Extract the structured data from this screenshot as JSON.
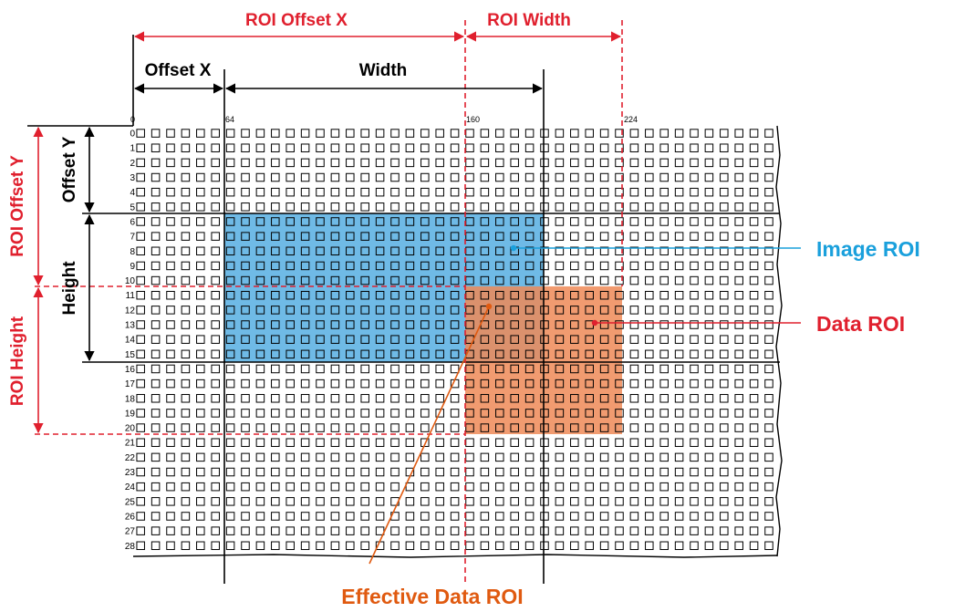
{
  "colors": {
    "red": "#e0202e",
    "blue": "#1aa0dc",
    "image_roi_fill": "#5fb3e3",
    "data_roi_fill": "#ef8a57",
    "effective_line": "#e05a10",
    "grid": "#000000"
  },
  "labels": {
    "roi_offset_x": "ROI Offset X",
    "roi_width": "ROI Width",
    "offset_x": "Offset X",
    "width": "Width",
    "roi_offset_y": "ROI Offset Y",
    "roi_height": "ROI Height",
    "offset_y": "Offset Y",
    "height": "Height",
    "image_roi": "Image ROI",
    "data_roi": "Data ROI",
    "effective_data_roi": "Effective Data ROI"
  },
  "column_markers": [
    "0",
    "64",
    "160",
    "224"
  ],
  "row_numbers": [
    "0",
    "1",
    "2",
    "3",
    "4",
    "5",
    "6",
    "7",
    "8",
    "9",
    "10",
    "11",
    "12",
    "13",
    "14",
    "15",
    "16",
    "17",
    "18",
    "19",
    "20",
    "21",
    "22",
    "23",
    "24",
    "25",
    "26",
    "27",
    "28"
  ]
}
